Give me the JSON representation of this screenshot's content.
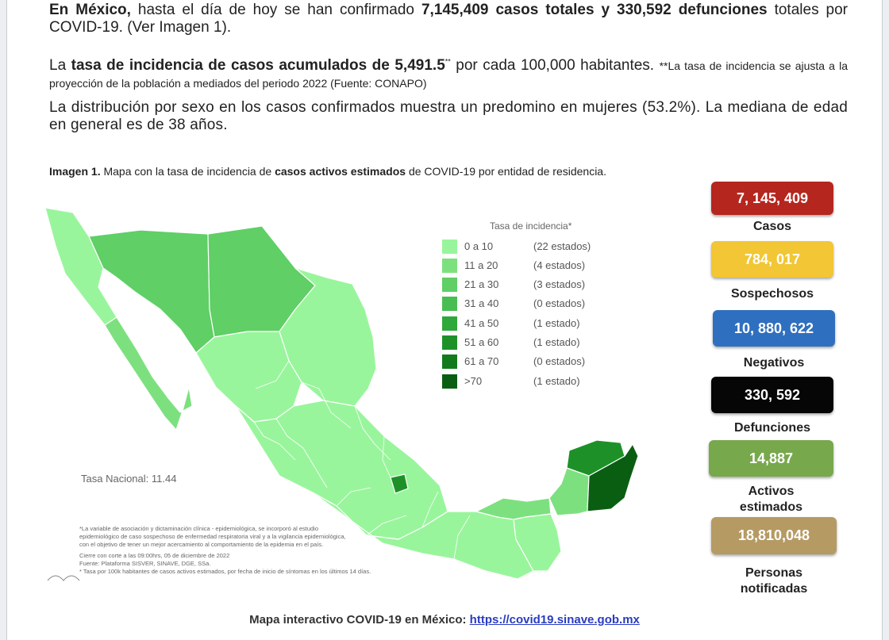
{
  "text": {
    "p1_a": "En México,",
    "p1_b": " hasta el día de hoy se han confirmado ",
    "p1_c": "7,145,409 casos totales y 330,592 defunciones",
    "p1_d": " totales por COVID-19. (Ver Imagen 1).",
    "p2_a": "La ",
    "p2_b": "tasa de incidencia de casos acumulados de 5,491.5",
    "p2_sup": "**",
    "p2_c": " por cada 100,000 habitantes. ",
    "p2_note": "**La tasa de incidencia se ajusta a la proyección de la población a mediados del periodo 2022 (Fuente: CONAPO)",
    "p3": "La distribución por sexo en los casos confirmados muestra un predomino en mujeres (53.2%). La mediana de edad en general es de 38 años.",
    "caption_a": "Imagen 1.",
    "caption_b": " Mapa con la tasa de incidencia de ",
    "caption_c": "casos activos estimados",
    "caption_d": " de COVID-19 por entidad de residencia."
  },
  "map": {
    "legend_title": "Tasa de incidencia*",
    "legend": [
      {
        "range": "0 a  10",
        "count": "(22 estados)",
        "color": "#99f59c"
      },
      {
        "range": "11 a  20",
        "count": "(4 estados)",
        "color": "#7de07f"
      },
      {
        "range": "21 a  30",
        "count": "(3 estados)",
        "color": "#5fcf66"
      },
      {
        "range": "31 a  40",
        "count": "(0 estados)",
        "color": "#48be52"
      },
      {
        "range": "41 a  50",
        "count": "(1 estado)",
        "color": "#2ea83a"
      },
      {
        "range": "51 a  60",
        "count": "(1 estado)",
        "color": "#1d9128"
      },
      {
        "range": "61 a  70",
        "count": "(0 estados)",
        "color": "#137a1c"
      },
      {
        "range": ">70",
        "count": "(1 estado)",
        "color": "#0a5e12"
      }
    ],
    "tasa_nacional": "Tasa Nacional: 11.44",
    "notes": [
      "*La variable de asociación y dictaminación clínica - epidemiológica, se incorporó al estudio",
      "epidemiológico de caso sospechoso de enfermedad respiratoria viral y a la vigilancia epidemiológica,",
      "con el objetivo de tener un mejor acercamiento al comportamiento de la epidemia en el país.",
      "Cierre con corte a las 09:00hrs, 05 de diciembre de 2022",
      "Fuente: Plataforma SISVER, SINAVE, DGE, SSa.",
      "* Tasa por 100k habitantes de casos activos estimados, por fecha de inicio de síntomas en los últimos 14 días."
    ]
  },
  "stats": {
    "casos": {
      "value": "7, 145, 409",
      "label": "Casos",
      "color": "#b5261e"
    },
    "sospechosos": {
      "value": "784, 017",
      "label": "Sospechosos",
      "color": "#f2c634"
    },
    "negativos": {
      "value": "10, 880, 622",
      "label": "Negativos",
      "color": "#2f6fbf"
    },
    "defunciones": {
      "value": "330, 592",
      "label": "Defunciones",
      "color": "#060606"
    },
    "activos": {
      "value": "14,887",
      "label1": "Activos",
      "label2": "estimados",
      "color": "#78a84c"
    },
    "personas": {
      "value": "18,810,048",
      "label1": "Personas",
      "label2": "notificadas",
      "color": "#b59a63"
    }
  },
  "footer": {
    "label": "Mapa interactivo COVID-19 en México: ",
    "link": "https://covid19.sinave.gob.mx"
  }
}
